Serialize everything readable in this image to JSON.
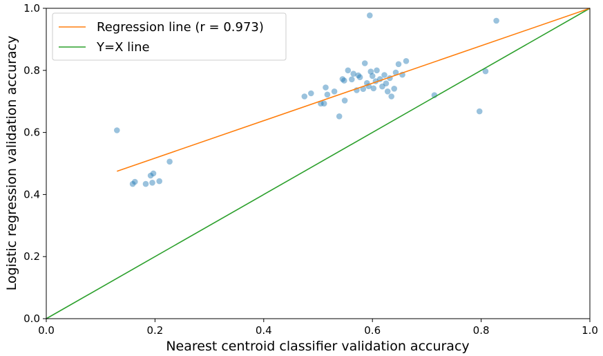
{
  "chart_data": {
    "type": "scatter",
    "title": "",
    "xlabel": "Nearest centroid classifier validation accuracy",
    "ylabel": "Logistic regression validation accuracy",
    "xlim": [
      0.0,
      1.0
    ],
    "ylim": [
      0.0,
      1.0
    ],
    "x_ticks": [
      "0.0",
      "0.2",
      "0.4",
      "0.6",
      "0.8",
      "1.0"
    ],
    "y_ticks": [
      "0.0",
      "0.2",
      "0.4",
      "0.6",
      "0.8",
      "1.0"
    ],
    "grid": false,
    "legend_position": "top-left",
    "legend": {
      "regression": "Regression line (r = 0.973)",
      "identity": "Y=X line"
    },
    "colors": {
      "points": "#1f77b4",
      "regression": "#ff7f0e",
      "identity": "#2ca02c"
    },
    "regression_line": {
      "x": [
        0.13,
        1.0
      ],
      "y": [
        0.475,
        1.0
      ]
    },
    "identity_line": {
      "x": [
        0.0,
        1.0
      ],
      "y": [
        0.0,
        1.0
      ]
    },
    "series": [
      {
        "points": [
          [
            0.13,
            0.607
          ],
          [
            0.159,
            0.434
          ],
          [
            0.163,
            0.441
          ],
          [
            0.183,
            0.434
          ],
          [
            0.192,
            0.461
          ],
          [
            0.195,
            0.438
          ],
          [
            0.197,
            0.468
          ],
          [
            0.208,
            0.443
          ],
          [
            0.227,
            0.506
          ],
          [
            0.475,
            0.716
          ],
          [
            0.487,
            0.726
          ],
          [
            0.505,
            0.693
          ],
          [
            0.511,
            0.693
          ],
          [
            0.514,
            0.745
          ],
          [
            0.517,
            0.722
          ],
          [
            0.53,
            0.732
          ],
          [
            0.539,
            0.652
          ],
          [
            0.545,
            0.772
          ],
          [
            0.548,
            0.767
          ],
          [
            0.549,
            0.703
          ],
          [
            0.555,
            0.8
          ],
          [
            0.562,
            0.771
          ],
          [
            0.565,
            0.789
          ],
          [
            0.571,
            0.736
          ],
          [
            0.574,
            0.784
          ],
          [
            0.577,
            0.778
          ],
          [
            0.583,
            0.74
          ],
          [
            0.586,
            0.823
          ],
          [
            0.59,
            0.759
          ],
          [
            0.593,
            0.749
          ],
          [
            0.595,
            0.977
          ],
          [
            0.597,
            0.796
          ],
          [
            0.6,
            0.782
          ],
          [
            0.602,
            0.742
          ],
          [
            0.606,
            0.765
          ],
          [
            0.608,
            0.8
          ],
          [
            0.614,
            0.772
          ],
          [
            0.618,
            0.748
          ],
          [
            0.622,
            0.785
          ],
          [
            0.625,
            0.758
          ],
          [
            0.628,
            0.732
          ],
          [
            0.632,
            0.775
          ],
          [
            0.635,
            0.716
          ],
          [
            0.64,
            0.741
          ],
          [
            0.643,
            0.793
          ],
          [
            0.648,
            0.82
          ],
          [
            0.655,
            0.786
          ],
          [
            0.662,
            0.83
          ],
          [
            0.714,
            0.72
          ],
          [
            0.797,
            0.668
          ],
          [
            0.808,
            0.797
          ],
          [
            0.828,
            0.96
          ]
        ]
      }
    ]
  }
}
